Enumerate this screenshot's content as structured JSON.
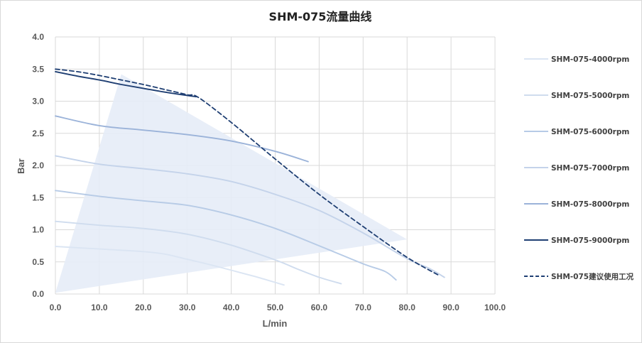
{
  "chart_data": {
    "type": "line",
    "title": "SHM-075流量曲线",
    "xlabel": "L/min",
    "ylabel": "Bar",
    "xlim": [
      0,
      100
    ],
    "ylim": [
      0,
      4
    ],
    "xticks": [
      "0.0",
      "10.0",
      "20.0",
      "30.0",
      "40.0",
      "50.0",
      "60.0",
      "70.0",
      "80.0",
      "90.0",
      "100.0"
    ],
    "yticks": [
      "0.0",
      "0.5",
      "1.0",
      "1.5",
      "2.0",
      "2.5",
      "3.0",
      "3.5",
      "4.0"
    ],
    "grid": true,
    "legend_position": "right",
    "shaded_region": {
      "color": "#e6ecf7",
      "points": [
        [
          0,
          0.02
        ],
        [
          15,
          3.42
        ],
        [
          80,
          0.85
        ]
      ]
    },
    "series": [
      {
        "name": "SHM-075-4000rpm",
        "color": "#dbe5f3",
        "dashed": false,
        "points": [
          [
            0,
            0.74
          ],
          [
            10,
            0.7
          ],
          [
            20,
            0.66
          ],
          [
            25,
            0.62
          ],
          [
            30,
            0.54
          ],
          [
            35,
            0.46
          ],
          [
            40,
            0.37
          ],
          [
            45,
            0.28
          ],
          [
            50,
            0.18
          ],
          [
            52,
            0.14
          ]
        ]
      },
      {
        "name": "SHM-075-5000rpm",
        "color": "#cfdcee",
        "dashed": false,
        "points": [
          [
            0,
            1.13
          ],
          [
            10,
            1.07
          ],
          [
            20,
            1.02
          ],
          [
            30,
            0.93
          ],
          [
            40,
            0.76
          ],
          [
            50,
            0.53
          ],
          [
            55,
            0.39
          ],
          [
            60,
            0.26
          ],
          [
            65,
            0.16
          ]
        ]
      },
      {
        "name": "SHM-075-6000rpm",
        "color": "#b7cbe6",
        "dashed": false,
        "points": [
          [
            0,
            1.61
          ],
          [
            10,
            1.52
          ],
          [
            20,
            1.45
          ],
          [
            30,
            1.38
          ],
          [
            40,
            1.23
          ],
          [
            50,
            1.02
          ],
          [
            60,
            0.75
          ],
          [
            70,
            0.47
          ],
          [
            75,
            0.35
          ],
          [
            77.5,
            0.22
          ]
        ]
      },
      {
        "name": "SHM-075-7000rpm",
        "color": "#c4d3ea",
        "dashed": false,
        "points": [
          [
            0,
            2.15
          ],
          [
            10,
            2.02
          ],
          [
            20,
            1.95
          ],
          [
            30,
            1.87
          ],
          [
            40,
            1.75
          ],
          [
            50,
            1.55
          ],
          [
            60,
            1.3
          ],
          [
            70,
            0.95
          ],
          [
            80,
            0.55
          ],
          [
            85,
            0.4
          ],
          [
            88.5,
            0.26
          ]
        ]
      },
      {
        "name": "SHM-075-8000rpm",
        "color": "#9bb3d9",
        "dashed": false,
        "points": [
          [
            0,
            2.77
          ],
          [
            10,
            2.62
          ],
          [
            20,
            2.55
          ],
          [
            30,
            2.48
          ],
          [
            40,
            2.38
          ],
          [
            50,
            2.22
          ],
          [
            57.5,
            2.06
          ]
        ]
      },
      {
        "name": "SHM-075-9000rpm",
        "color": "#1f3f73",
        "dashed": false,
        "points": [
          [
            0,
            3.46
          ],
          [
            5,
            3.39
          ],
          [
            10,
            3.33
          ],
          [
            15,
            3.26
          ],
          [
            20,
            3.2
          ],
          [
            25,
            3.14
          ],
          [
            30,
            3.09
          ],
          [
            32,
            3.07
          ]
        ]
      },
      {
        "name": "SHM-075建议使用工况",
        "color": "#1f3f73",
        "dashed": true,
        "points": [
          [
            0,
            3.5
          ],
          [
            5,
            3.46
          ],
          [
            10,
            3.4
          ],
          [
            15,
            3.33
          ],
          [
            20,
            3.26
          ],
          [
            25,
            3.18
          ],
          [
            30,
            3.1
          ],
          [
            32.5,
            3.06
          ],
          [
            40,
            2.67
          ],
          [
            50,
            2.1
          ],
          [
            60,
            1.55
          ],
          [
            70,
            1.05
          ],
          [
            80,
            0.57
          ],
          [
            87,
            0.3
          ]
        ]
      }
    ]
  }
}
